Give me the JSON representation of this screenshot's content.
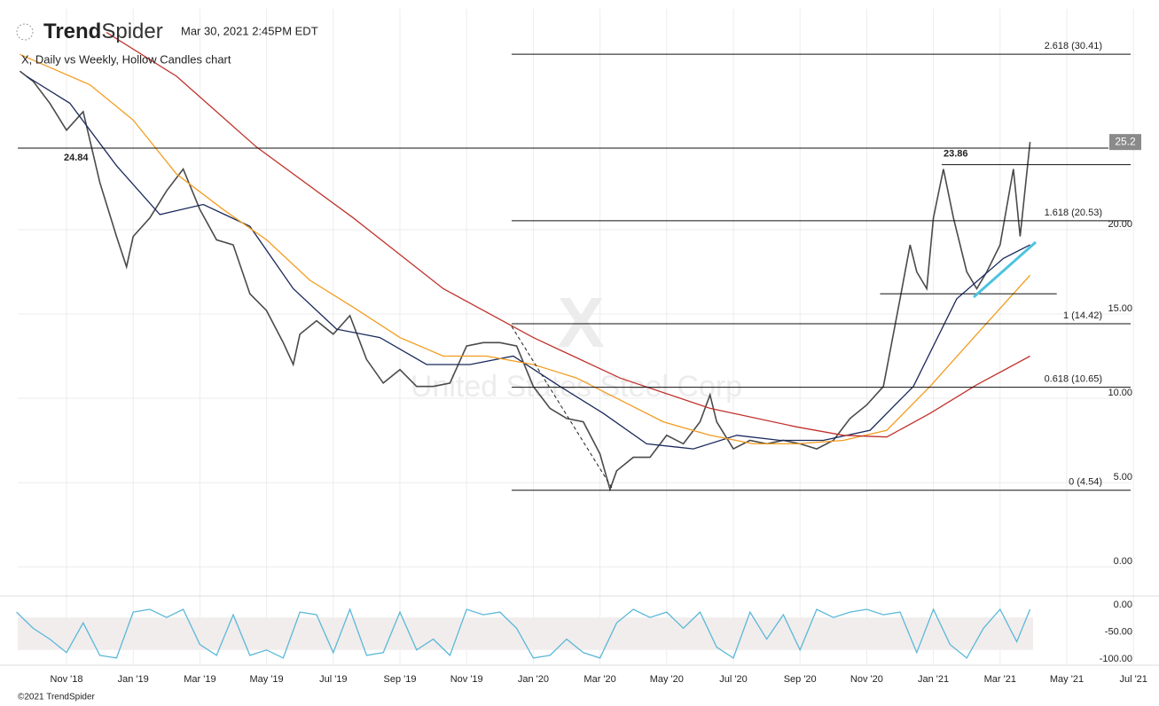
{
  "header": {
    "brand_strong": "Trend",
    "brand_light": "Spider",
    "timestamp": "Mar 30, 2021 2:45PM EDT",
    "chart_title": "X, Daily vs Weekly, Hollow Candles chart"
  },
  "watermark": {
    "symbol": "X",
    "company": "United States Steel Corp"
  },
  "footer": "©2021 TrendSpider",
  "chart_data": [
    {
      "type": "line",
      "xlim": [
        -0.463,
        32.915
      ],
      "xticks": [
        {
          "value": 1,
          "label": "Nov '18"
        },
        {
          "value": 3,
          "label": "Jan '19"
        },
        {
          "value": 5,
          "label": "Mar '19"
        },
        {
          "value": 7,
          "label": "May '19"
        },
        {
          "value": 9,
          "label": "Jul '19"
        },
        {
          "value": 11,
          "label": "Sep '19"
        },
        {
          "value": 13,
          "label": "Nov '19"
        },
        {
          "value": 15,
          "label": "Jan '20"
        },
        {
          "value": 17,
          "label": "Mar '20"
        },
        {
          "value": 19,
          "label": "May '20"
        },
        {
          "value": 21,
          "label": "Jul '20"
        },
        {
          "value": 23,
          "label": "Sep '20"
        },
        {
          "value": 25,
          "label": "Nov '20"
        },
        {
          "value": 27,
          "label": "Jan '21"
        },
        {
          "value": 29,
          "label": "Mar '21"
        },
        {
          "value": 31,
          "label": "May '21"
        },
        {
          "value": 33,
          "label": "Jul '21"
        }
      ],
      "ylim": [
        -1.1,
        33.1
      ],
      "yticks": [
        {
          "value": 0,
          "label": "0.00"
        },
        {
          "value": 5,
          "label": "5.00"
        },
        {
          "value": 10,
          "label": "10.00"
        },
        {
          "value": 15,
          "label": "15.00"
        },
        {
          "value": 20,
          "label": "20.00"
        }
      ],
      "grid": true,
      "series": [
        {
          "color": "#4a4a4a",
          "x": [
            -0.4,
            0,
            0.5,
            1,
            1.5,
            2,
            2.5,
            2.8,
            3,
            3.5,
            4,
            4.5,
            5,
            5.5,
            6,
            6.5,
            7,
            7.5,
            7.8,
            8,
            8.5,
            9,
            9.5,
            10,
            10.5,
            11,
            11.5,
            12,
            12.5,
            13,
            13.5,
            14,
            14.5,
            15,
            15.5,
            16,
            16.5,
            17,
            17.3,
            17.5,
            18,
            18.5,
            19,
            19.5,
            20,
            20.3,
            20.5,
            21,
            21.5,
            22,
            22.5,
            23,
            23.5,
            24,
            24.5,
            25,
            25.5,
            26,
            26.3,
            26.5,
            26.8,
            27,
            27.3,
            27.6,
            28,
            28.3,
            28.6,
            29,
            29.4,
            29.6,
            29.9
          ],
          "values": [
            29.4,
            28.8,
            27.5,
            25.9,
            27.0,
            22.8,
            19.6,
            17.8,
            19.6,
            20.7,
            22.3,
            23.6,
            21.2,
            19.4,
            19.1,
            16.2,
            15.2,
            13.3,
            12.0,
            13.8,
            14.6,
            13.8,
            14.9,
            12.3,
            10.9,
            11.7,
            10.7,
            10.7,
            10.9,
            13.1,
            13.3,
            13.3,
            13.1,
            10.7,
            9.4,
            8.8,
            8.6,
            6.7,
            4.6,
            5.7,
            6.5,
            6.5,
            7.8,
            7.3,
            8.6,
            10.2,
            8.6,
            7.0,
            7.5,
            7.3,
            7.5,
            7.3,
            7.0,
            7.5,
            8.8,
            9.6,
            10.7,
            15.9,
            19.1,
            17.5,
            16.5,
            20.7,
            23.6,
            20.7,
            17.5,
            16.5,
            17.5,
            19.1,
            23.6,
            19.6,
            25.2
          ]
        },
        {
          "color": "#1b2a5c",
          "x": [
            -0.2,
            1.1,
            2.5,
            3.8,
            5.1,
            6.5,
            7.8,
            9.1,
            10.4,
            11.8,
            13.1,
            14.4,
            15.8,
            17.1,
            18.4,
            19.8,
            21.1,
            22.4,
            23.7,
            25.1,
            26.4,
            27.7,
            29.1,
            29.9
          ],
          "values": [
            29.1,
            27.5,
            23.8,
            20.9,
            21.5,
            20.2,
            16.5,
            14.1,
            13.6,
            12.0,
            12.0,
            12.5,
            10.7,
            9.1,
            7.3,
            7.0,
            7.8,
            7.5,
            7.5,
            8.1,
            10.7,
            15.9,
            18.3,
            19.1
          ]
        },
        {
          "color": "#f39c1f",
          "x": [
            -0.4,
            1.7,
            3,
            4.3,
            5.7,
            7,
            8.3,
            9.6,
            11,
            12.3,
            13.6,
            15,
            16.3,
            17.6,
            18.9,
            20.3,
            21.6,
            22.9,
            24.3,
            25.6,
            26.9,
            28.3,
            29.9
          ],
          "values": [
            30.4,
            28.6,
            26.5,
            23.3,
            21.2,
            19.4,
            17.0,
            15.4,
            13.6,
            12.5,
            12.5,
            12.0,
            11.2,
            9.9,
            8.6,
            7.8,
            7.3,
            7.3,
            7.5,
            8.1,
            10.7,
            13.8,
            17.3
          ]
        },
        {
          "color": "#c0312b",
          "x": [
            2.2,
            4.3,
            6.7,
            9.6,
            12.3,
            15,
            17.6,
            20.3,
            22.9,
            24.3,
            25.6,
            26.9,
            28.3,
            29.9
          ],
          "values": [
            31.7,
            29.1,
            24.9,
            20.7,
            16.5,
            13.6,
            11.2,
            9.4,
            8.3,
            7.8,
            7.7,
            9.1,
            10.8,
            12.5
          ]
        }
      ],
      "levels": [
        {
          "value": 30.41,
          "label": "2.618 (30.41)",
          "from": 14.35
        },
        {
          "value": 20.53,
          "label": "1.618 (20.53)",
          "from": 14.35
        },
        {
          "value": 14.42,
          "label": "1 (14.42)",
          "from": 14.35
        },
        {
          "value": 10.65,
          "label": "0.618 (10.65)",
          "from": 14.35
        },
        {
          "value": 4.54,
          "label": "0 (4.54)",
          "from": 14.35
        }
      ],
      "annotations": [
        {
          "value": 24.84,
          "from": -0.46
        },
        {
          "value": 23.86,
          "from": 27.25
        }
      ],
      "support": {
        "value": 16.2,
        "from": 25.4,
        "to": 30.7
      }
    },
    {
      "type": "line",
      "xlim": [
        -0.463,
        32.915
      ],
      "ylim": [
        -108.2,
        13.1
      ],
      "yticks": [
        {
          "value": 0,
          "label": "0.00"
        },
        {
          "value": -50,
          "label": "-50.00"
        },
        {
          "value": -100,
          "label": "-100.00"
        }
      ],
      "band": [
        -80,
        -20
      ],
      "series": [
        {
          "color": "#5bb8d8",
          "x": [
            -0.5,
            0,
            0.5,
            1,
            1.5,
            2,
            2.5,
            3,
            3.5,
            4,
            4.5,
            5,
            5.5,
            6,
            6.5,
            7,
            7.5,
            8,
            8.5,
            9,
            9.5,
            10,
            10.5,
            11,
            11.5,
            12,
            12.5,
            13,
            13.5,
            14,
            14.5,
            15,
            15.5,
            16,
            16.5,
            17,
            17.5,
            18,
            18.5,
            19,
            19.5,
            20,
            20.5,
            21,
            21.5,
            22,
            22.5,
            23,
            23.5,
            24,
            24.5,
            25,
            25.5,
            26,
            26.5,
            27,
            27.5,
            28,
            28.5,
            29,
            29.5,
            29.9
          ],
          "values": [
            -10,
            -40,
            -60,
            -85,
            -30,
            -90,
            -95,
            -10,
            -5,
            -20,
            -5,
            -70,
            -90,
            -15,
            -90,
            -80,
            -95,
            -10,
            -15,
            -85,
            -5,
            -90,
            -85,
            -10,
            -80,
            -60,
            -90,
            -5,
            -15,
            -10,
            -40,
            -95,
            -90,
            -60,
            -85,
            -95,
            -30,
            -5,
            -20,
            -10,
            -40,
            -10,
            -75,
            -95,
            -10,
            -60,
            -15,
            -80,
            -5,
            -20,
            -10,
            -5,
            -15,
            -10,
            -85,
            -5,
            -70,
            -95,
            -40,
            -5,
            -65,
            -5
          ]
        }
      ]
    }
  ]
}
